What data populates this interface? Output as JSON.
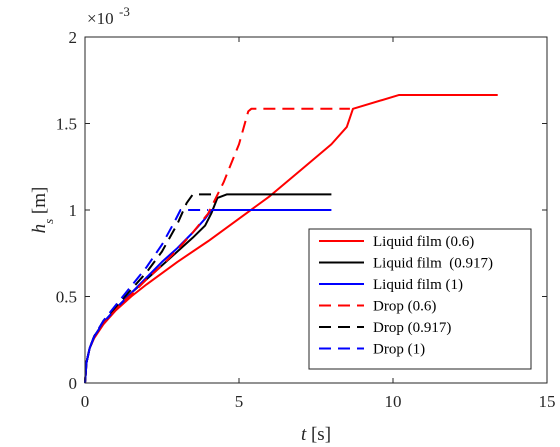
{
  "chart_data": {
    "type": "line",
    "xlabel": {
      "var": "t",
      "unit": " [s]"
    },
    "ylabel": {
      "var": "h",
      "sub": "s",
      "unit": " [m]"
    },
    "exponent_label": {
      "base": "×10",
      "exp": "-3"
    },
    "xlim": [
      0,
      15
    ],
    "ylim": [
      0,
      2
    ],
    "x_ticks": [
      "0",
      "5",
      "10",
      "15"
    ],
    "y_ticks": [
      "0",
      "0.5",
      "1",
      "1.5",
      "2"
    ],
    "grid": false,
    "legend_position": "bottom-right",
    "series": [
      {
        "name": "Liquid film (0.6)",
        "color": "#ff0000",
        "dash": "solid",
        "points": [
          [
            0,
            0
          ],
          [
            0.05,
            0.12
          ],
          [
            0.15,
            0.2
          ],
          [
            0.3,
            0.26
          ],
          [
            0.6,
            0.34
          ],
          [
            1,
            0.42
          ],
          [
            1.5,
            0.5
          ],
          [
            2,
            0.57
          ],
          [
            3,
            0.7
          ],
          [
            4,
            0.82
          ],
          [
            5,
            0.95
          ],
          [
            6,
            1.08
          ],
          [
            7,
            1.23
          ],
          [
            8,
            1.38
          ],
          [
            8.5,
            1.48
          ],
          [
            8.7,
            1.585
          ],
          [
            10.2,
            1.665
          ],
          [
            13.4,
            1.665
          ]
        ]
      },
      {
        "name": "Liquid film  (0.917)",
        "color": "#000000",
        "dash": "solid",
        "points": [
          [
            0,
            0
          ],
          [
            0.05,
            0.12
          ],
          [
            0.15,
            0.2
          ],
          [
            0.3,
            0.27
          ],
          [
            0.6,
            0.35
          ],
          [
            1,
            0.43
          ],
          [
            1.5,
            0.52
          ],
          [
            2,
            0.6
          ],
          [
            2.5,
            0.68
          ],
          [
            3,
            0.76
          ],
          [
            3.5,
            0.84
          ],
          [
            3.9,
            0.91
          ],
          [
            4.1,
            0.98
          ],
          [
            4.3,
            1.07
          ],
          [
            4.6,
            1.09
          ],
          [
            8,
            1.09
          ]
        ]
      },
      {
        "name": "Liquid film (1)",
        "color": "#0000ff",
        "dash": "solid",
        "points": [
          [
            0,
            0
          ],
          [
            0.05,
            0.12
          ],
          [
            0.15,
            0.2
          ],
          [
            0.3,
            0.27
          ],
          [
            0.6,
            0.35
          ],
          [
            1,
            0.43
          ],
          [
            1.5,
            0.52
          ],
          [
            2,
            0.61
          ],
          [
            2.5,
            0.7
          ],
          [
            3,
            0.78
          ],
          [
            3.5,
            0.87
          ],
          [
            3.9,
            0.95
          ],
          [
            4.1,
            1.0
          ],
          [
            8,
            1.0
          ]
        ]
      },
      {
        "name": "Drop (0.6)",
        "color": "#ff0000",
        "dash": "dashed",
        "points": [
          [
            0,
            0
          ],
          [
            0.05,
            0.12
          ],
          [
            0.15,
            0.2
          ],
          [
            0.3,
            0.27
          ],
          [
            0.6,
            0.35
          ],
          [
            1,
            0.43
          ],
          [
            1.5,
            0.51
          ],
          [
            2,
            0.6
          ],
          [
            2.5,
            0.68
          ],
          [
            3,
            0.77
          ],
          [
            3.5,
            0.87
          ],
          [
            4,
            0.98
          ],
          [
            4.5,
            1.16
          ],
          [
            5,
            1.38
          ],
          [
            5.3,
            1.57
          ],
          [
            5.4,
            1.585
          ],
          [
            8.6,
            1.585
          ]
        ]
      },
      {
        "name": "Drop (0.917)",
        "color": "#000000",
        "dash": "dashed",
        "points": [
          [
            0,
            0
          ],
          [
            0.05,
            0.12
          ],
          [
            0.15,
            0.2
          ],
          [
            0.3,
            0.27
          ],
          [
            0.6,
            0.36
          ],
          [
            1,
            0.44
          ],
          [
            1.5,
            0.54
          ],
          [
            2,
            0.64
          ],
          [
            2.5,
            0.76
          ],
          [
            3,
            0.92
          ],
          [
            3.3,
            1.04
          ],
          [
            3.5,
            1.09
          ],
          [
            4.3,
            1.09
          ]
        ]
      },
      {
        "name": "Drop (1)",
        "color": "#0000ff",
        "dash": "dashed",
        "points": [
          [
            0,
            0
          ],
          [
            0.05,
            0.12
          ],
          [
            0.15,
            0.2
          ],
          [
            0.3,
            0.27
          ],
          [
            0.6,
            0.36
          ],
          [
            1,
            0.45
          ],
          [
            1.5,
            0.56
          ],
          [
            2,
            0.67
          ],
          [
            2.5,
            0.8
          ],
          [
            2.9,
            0.93
          ],
          [
            3.1,
            1.0
          ],
          [
            4.0,
            1.0
          ]
        ]
      }
    ]
  }
}
